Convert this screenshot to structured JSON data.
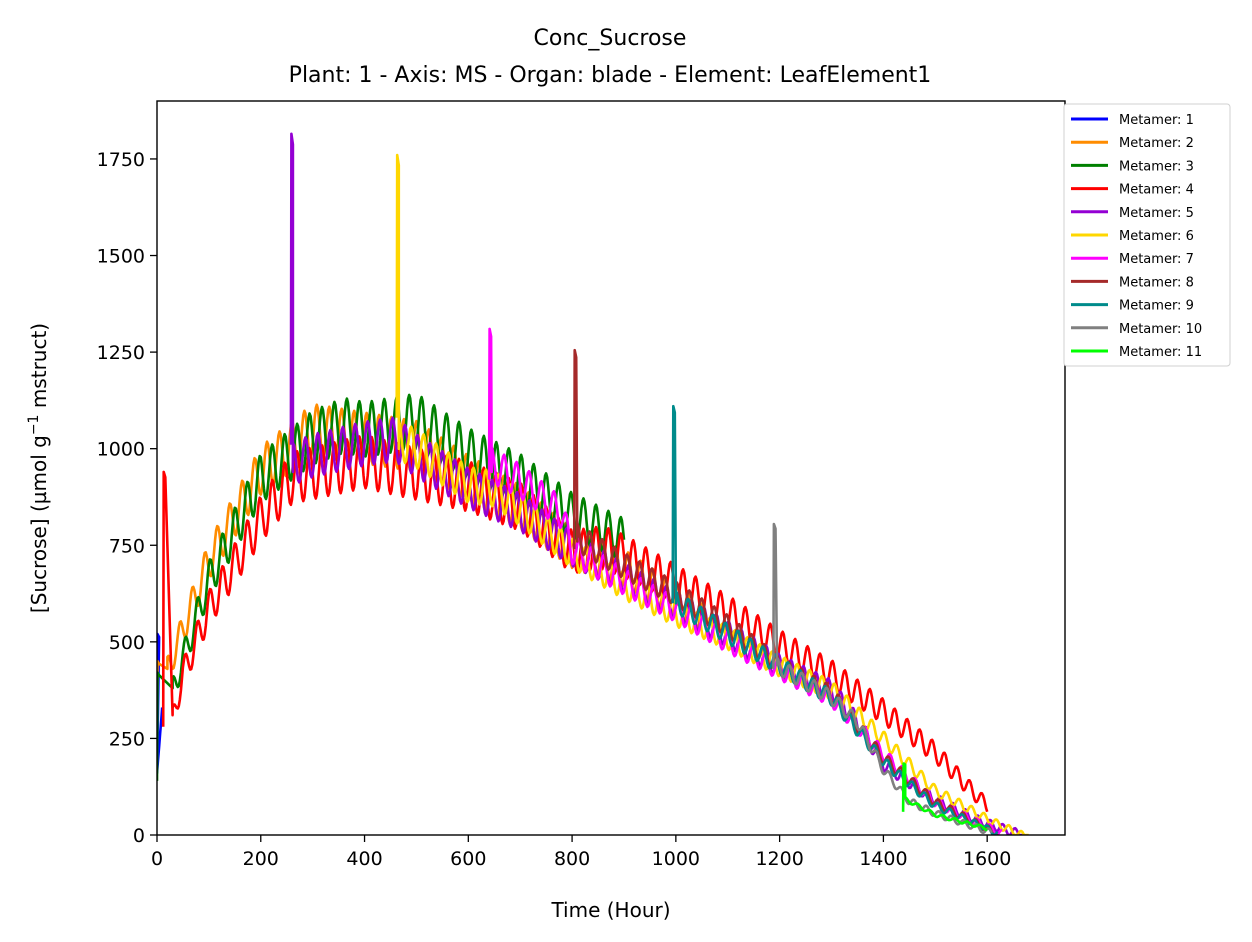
{
  "chart_data": {
    "type": "line",
    "title": "Conc_Sucrose",
    "subtitle": "Plant: 1 - Axis: MS - Organ: blade - Element: LeafElement1",
    "xlabel": "Time (Hour)",
    "ylabel_parts": {
      "main": "[Sucrose] (µmol g",
      "sup": "−1",
      "end": " mstruct)"
    },
    "xlim": [
      0,
      1750
    ],
    "ylim": [
      0,
      1900
    ],
    "xticks": [
      0,
      200,
      400,
      600,
      800,
      1000,
      1200,
      1400,
      1600
    ],
    "yticks": [
      0,
      250,
      500,
      750,
      1000,
      1250,
      1500,
      1750
    ],
    "legend_position": "outside-top-right",
    "grid": false,
    "series": [
      {
        "name": "Metamer: 1",
        "color": "#0000ff",
        "start": 0,
        "end": 10,
        "spike_start": 330,
        "spike_peak": 520,
        "trend": [
          [
            0,
            160
          ],
          [
            10,
            330
          ]
        ],
        "amp": 0
      },
      {
        "name": "Metamer: 2",
        "color": "#ff8c00",
        "start": 0,
        "end": 1060,
        "spike_start": 300,
        "spike_peak": 450,
        "trend": [
          [
            20,
            430
          ],
          [
            100,
            700
          ],
          [
            200,
            920
          ],
          [
            300,
            1020
          ],
          [
            400,
            1000
          ],
          [
            500,
            980
          ],
          [
            600,
            900
          ],
          [
            700,
            830
          ],
          [
            800,
            730
          ],
          [
            900,
            680
          ],
          [
            1000,
            600
          ],
          [
            1060,
            550
          ]
        ],
        "amp": 110
      },
      {
        "name": "Metamer: 3",
        "color": "#008000",
        "start": 0,
        "end": 900,
        "spike_start": 140,
        "spike_peak": 420,
        "trend": [
          [
            30,
            380
          ],
          [
            100,
            650
          ],
          [
            200,
            900
          ],
          [
            300,
            1000
          ],
          [
            360,
            1030
          ],
          [
            400,
            1020
          ],
          [
            500,
            1040
          ],
          [
            600,
            960
          ],
          [
            700,
            900
          ],
          [
            800,
            810
          ],
          [
            900,
            750
          ]
        ],
        "amp": 115
      },
      {
        "name": "Metamer: 4",
        "color": "#ff0000",
        "start": 12,
        "end": 1600,
        "spike_start": 280,
        "spike_peak": 940,
        "trend": [
          [
            30,
            310
          ],
          [
            50,
            420
          ],
          [
            100,
            580
          ],
          [
            200,
            800
          ],
          [
            260,
            900
          ],
          [
            400,
            940
          ],
          [
            600,
            880
          ],
          [
            700,
            830
          ],
          [
            800,
            720
          ],
          [
            860,
            730
          ],
          [
            900,
            710
          ],
          [
            1000,
            640
          ],
          [
            1100,
            570
          ],
          [
            1200,
            490
          ],
          [
            1300,
            420
          ],
          [
            1400,
            330
          ],
          [
            1500,
            230
          ],
          [
            1560,
            150
          ],
          [
            1600,
            100
          ]
        ],
        "amp": 120
      },
      {
        "name": "Metamer: 5",
        "color": "#9400d3",
        "start": 258,
        "end": 1670,
        "spike_start": 1010,
        "spike_peak": 1815,
        "trend": [
          [
            262,
            940
          ],
          [
            300,
            960
          ],
          [
            400,
            990
          ],
          [
            460,
            1000
          ],
          [
            500,
            960
          ],
          [
            600,
            880
          ],
          [
            700,
            820
          ],
          [
            800,
            730
          ],
          [
            900,
            660
          ],
          [
            1000,
            590
          ],
          [
            1100,
            520
          ],
          [
            1200,
            440
          ],
          [
            1300,
            380
          ],
          [
            1350,
            300
          ],
          [
            1400,
            200
          ],
          [
            1500,
            110
          ],
          [
            1580,
            60
          ],
          [
            1670,
            20
          ]
        ],
        "amp": 95
      },
      {
        "name": "Metamer: 6",
        "color": "#ffd700",
        "start": 462,
        "end": 1680,
        "spike_start": 1080,
        "spike_peak": 1760,
        "trend": [
          [
            466,
            1000
          ],
          [
            500,
            980
          ],
          [
            600,
            890
          ],
          [
            650,
            880
          ],
          [
            700,
            830
          ],
          [
            800,
            720
          ],
          [
            900,
            640
          ],
          [
            1000,
            570
          ],
          [
            1100,
            510
          ],
          [
            1200,
            440
          ],
          [
            1300,
            380
          ],
          [
            1400,
            260
          ],
          [
            1500,
            130
          ],
          [
            1600,
            60
          ],
          [
            1680,
            10
          ]
        ],
        "amp": 85
      },
      {
        "name": "Metamer: 7",
        "color": "#ff00ff",
        "start": 640,
        "end": 1630,
        "spike_start": 920,
        "spike_peak": 1310,
        "trend": [
          [
            645,
            940
          ],
          [
            700,
            900
          ],
          [
            780,
            820
          ],
          [
            800,
            730
          ],
          [
            900,
            650
          ],
          [
            1000,
            580
          ],
          [
            1100,
            500
          ],
          [
            1200,
            430
          ],
          [
            1300,
            360
          ],
          [
            1400,
            220
          ],
          [
            1500,
            100
          ],
          [
            1630,
            20
          ]
        ],
        "amp": 80
      },
      {
        "name": "Metamer: 8",
        "color": "#a52a2a",
        "start": 804,
        "end": 1620,
        "spike_start": 740,
        "spike_peak": 1255,
        "trend": [
          [
            810,
            760
          ],
          [
            900,
            690
          ],
          [
            1000,
            620
          ],
          [
            1100,
            540
          ],
          [
            1200,
            440
          ],
          [
            1300,
            370
          ],
          [
            1400,
            210
          ],
          [
            1500,
            100
          ],
          [
            1620,
            20
          ]
        ],
        "amp": 75
      },
      {
        "name": "Metamer: 9",
        "color": "#008b8b",
        "start": 994,
        "end": 1620,
        "spike_start": 600,
        "spike_peak": 1110,
        "trend": [
          [
            1000,
            600
          ],
          [
            1100,
            520
          ],
          [
            1200,
            440
          ],
          [
            1300,
            360
          ],
          [
            1400,
            200
          ],
          [
            1500,
            90
          ],
          [
            1620,
            20
          ]
        ],
        "amp": 70
      },
      {
        "name": "Metamer: 10",
        "color": "#808080",
        "start": 1188,
        "end": 1610,
        "spike_start": 430,
        "spike_peak": 805,
        "trend": [
          [
            1195,
            440
          ],
          [
            1300,
            360
          ],
          [
            1350,
            300
          ],
          [
            1400,
            180
          ],
          [
            1450,
            100
          ],
          [
            1500,
            70
          ],
          [
            1610,
            20
          ]
        ],
        "amp": 65
      },
      {
        "name": "Metamer: 11",
        "color": "#00ff00",
        "start": 1438,
        "end": 1600,
        "spike_start": 60,
        "spike_peak": 185,
        "trend": [
          [
            1442,
            100
          ],
          [
            1500,
            60
          ],
          [
            1600,
            25
          ]
        ],
        "amp": 35
      }
    ]
  }
}
